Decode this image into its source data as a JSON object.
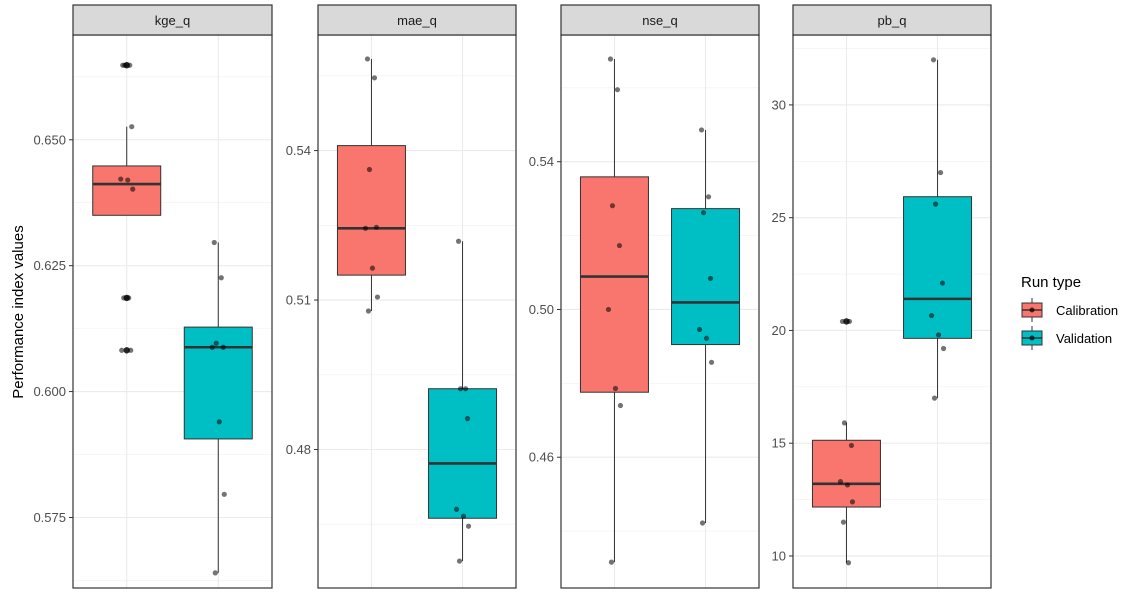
{
  "chart_data": {
    "type": "boxplot",
    "ylabel": "Performance index values",
    "xlabel": "",
    "grid": true,
    "legend": {
      "title": "Run type",
      "position": "right",
      "entries": [
        {
          "name": "Calibration",
          "color": "#F8766D"
        },
        {
          "name": "Validation",
          "color": "#00BFC4"
        }
      ]
    },
    "facets": [
      {
        "name": "kge_q",
        "ylim": [
          0.561,
          0.6708
        ],
        "yticks": [
          0.575,
          0.6,
          0.625,
          0.65
        ],
        "ytick_labels": [
          "0.575",
          "0.600",
          "0.625",
          "0.650"
        ],
        "series": [
          {
            "name": "Calibration",
            "box": {
              "whisker_low": 0.635,
              "q1": 0.635,
              "median": 0.6412,
              "q3": 0.6448,
              "whisker_high": 0.6526
            },
            "points": [
              0.6648,
              0.6648,
              0.6648,
              0.6526,
              0.6422,
              0.642,
              0.6402,
              0.6186,
              0.6186,
              0.6082,
              0.6082
            ],
            "outliers": [
              0.6648,
              0.6186,
              0.6082
            ]
          },
          {
            "name": "Validation",
            "box": {
              "whisker_low": 0.564,
              "q1": 0.5906,
              "median": 0.6088,
              "q3": 0.6128,
              "whisker_high": 0.6296
            },
            "points": [
              0.6296,
              0.6226,
              0.6096,
              0.6088,
              0.6088,
              0.594,
              0.5796,
              0.564
            ],
            "outliers": []
          }
        ]
      },
      {
        "name": "mae_q",
        "ylim": [
          0.4522,
          0.5632
        ],
        "yticks": [
          0.48,
          0.51,
          0.54
        ],
        "ytick_labels": [
          "0.48",
          "0.51",
          "0.54"
        ],
        "series": [
          {
            "name": "Calibration",
            "box": {
              "whisker_low": 0.5078,
              "q1": 0.515,
              "median": 0.5244,
              "q3": 0.541,
              "whisker_high": 0.5584
            },
            "points": [
              0.5584,
              0.5546,
              0.5362,
              0.5246,
              0.5244,
              0.5164,
              0.5106,
              0.5078
            ],
            "outliers": []
          },
          {
            "name": "Validation",
            "box": {
              "whisker_low": 0.4576,
              "q1": 0.4662,
              "median": 0.4772,
              "q3": 0.4922,
              "whisker_high": 0.5218
            },
            "points": [
              0.5218,
              0.4922,
              0.4922,
              0.4862,
              0.468,
              0.4666,
              0.4646,
              0.4576
            ],
            "outliers": []
          }
        ]
      },
      {
        "name": "nse_q",
        "ylim": [
          0.4246,
          0.5743
        ],
        "yticks": [
          0.46,
          0.5,
          0.54
        ],
        "ytick_labels": [
          "0.46",
          "0.50",
          "0.54"
        ],
        "series": [
          {
            "name": "Calibration",
            "box": {
              "whisker_low": 0.4316,
              "q1": 0.4776,
              "median": 0.5089,
              "q3": 0.5359,
              "whisker_high": 0.5678
            },
            "points": [
              0.5678,
              0.5595,
              0.5281,
              0.5173,
              0.5,
              0.4786,
              0.474,
              0.4316
            ],
            "outliers": []
          },
          {
            "name": "Validation",
            "box": {
              "whisker_low": 0.4422,
              "q1": 0.4905,
              "median": 0.5019,
              "q3": 0.5273,
              "whisker_high": 0.5486
            },
            "points": [
              0.5486,
              0.5305,
              0.5262,
              0.5084,
              0.4946,
              0.4922,
              0.4857,
              0.4422
            ],
            "outliers": []
          }
        ]
      },
      {
        "name": "pb_q",
        "ylim": [
          8.58,
          33.1
        ],
        "yticks": [
          10,
          15,
          20,
          25,
          30
        ],
        "ytick_labels": [
          "10",
          "15",
          "20",
          "25",
          "30"
        ],
        "series": [
          {
            "name": "Calibration",
            "box": {
              "whisker_low": 9.7,
              "q1": 12.17,
              "median": 13.2,
              "q3": 15.13,
              "whisker_high": 15.9
            },
            "points": [
              20.4,
              20.4,
              15.9,
              14.9,
              13.3,
              13.15,
              12.4,
              11.5,
              9.7
            ],
            "outliers": [
              20.4
            ]
          },
          {
            "name": "Validation",
            "box": {
              "whisker_low": 17.0,
              "q1": 19.65,
              "median": 21.4,
              "q3": 25.93,
              "whisker_high": 32.0
            },
            "points": [
              32.0,
              27.0,
              25.6,
              22.1,
              20.66,
              19.8,
              19.2,
              17.0
            ],
            "outliers": []
          }
        ]
      }
    ]
  }
}
